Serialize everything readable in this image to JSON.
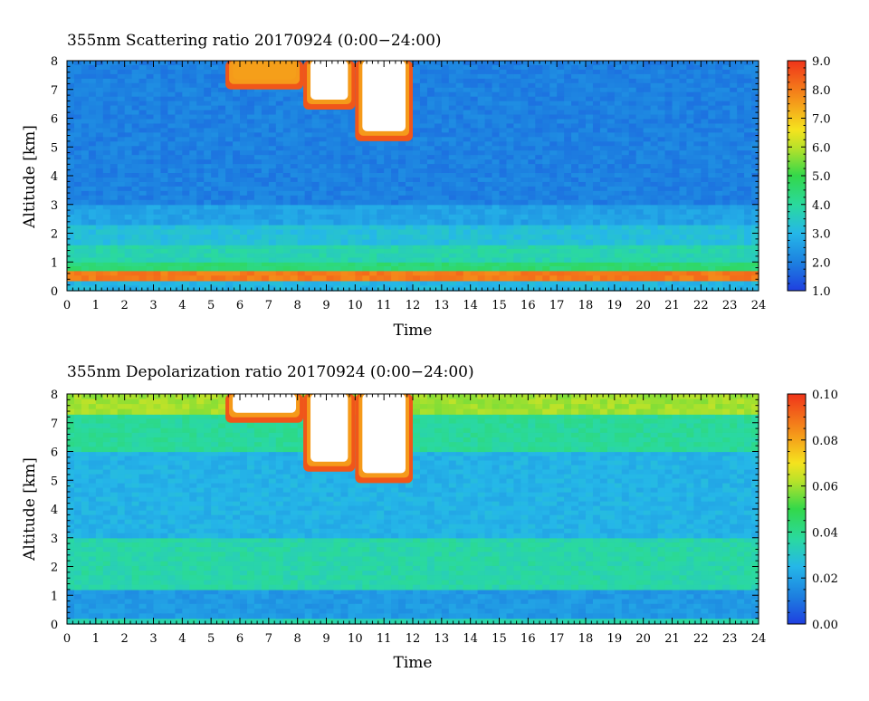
{
  "chart_data": [
    {
      "type": "heatmap",
      "title": "355nm Scattering ratio  20170924 (0:00−24:00)",
      "xlabel": "Time",
      "ylabel": "Altitude [km]",
      "xlim": [
        0,
        24
      ],
      "ylim": [
        0,
        8
      ],
      "x_ticks": [
        "0",
        "1",
        "2",
        "3",
        "4",
        "5",
        "6",
        "7",
        "8",
        "9",
        "10",
        "11",
        "12",
        "13",
        "14",
        "15",
        "16",
        "17",
        "18",
        "19",
        "20",
        "21",
        "22",
        "23",
        "24"
      ],
      "y_ticks": [
        "0",
        "1",
        "2",
        "3",
        "4",
        "5",
        "6",
        "7",
        "8"
      ],
      "colorbar": {
        "range": [
          1.0,
          9.0
        ],
        "ticks": [
          "1.0",
          "2.0",
          "3.0",
          "4.0",
          "5.0",
          "6.0",
          "7.0",
          "8.0",
          "9.0"
        ],
        "saturated_color": "#ffffff"
      },
      "layers": [
        {
          "from_km": 0.0,
          "to_km": 0.35,
          "value": 3.0
        },
        {
          "from_km": 0.35,
          "to_km": 0.7,
          "value": 8.0
        },
        {
          "from_km": 0.7,
          "to_km": 1.0,
          "value": 4.5
        },
        {
          "from_km": 1.0,
          "to_km": 1.6,
          "value": 3.8
        },
        {
          "from_km": 1.6,
          "to_km": 2.3,
          "value": 3.2
        },
        {
          "from_km": 2.3,
          "to_km": 3.0,
          "value": 2.6
        },
        {
          "from_km": 3.0,
          "to_km": 8.0,
          "value": 2.0
        }
      ],
      "clouds": [
        {
          "from_h": 5.5,
          "to_h": 8.2,
          "base_km": 7.0,
          "top_km": 8.0,
          "value": 7.5
        },
        {
          "from_h": 8.2,
          "to_h": 10.0,
          "base_km": 6.3,
          "top_km": 8.0,
          "value": 9.5
        },
        {
          "from_h": 10.0,
          "to_h": 12.0,
          "base_km": 5.2,
          "top_km": 8.0,
          "value": 9.5
        }
      ]
    },
    {
      "type": "heatmap",
      "title": "355nm Depolarization ratio  20170924 (0:00−24:00)",
      "xlabel": "Time",
      "ylabel": "Altitude [km]",
      "xlim": [
        0,
        24
      ],
      "ylim": [
        0,
        8
      ],
      "x_ticks": [
        "0",
        "1",
        "2",
        "3",
        "4",
        "5",
        "6",
        "7",
        "8",
        "9",
        "10",
        "11",
        "12",
        "13",
        "14",
        "15",
        "16",
        "17",
        "18",
        "19",
        "20",
        "21",
        "22",
        "23",
        "24"
      ],
      "y_ticks": [
        "0",
        "1",
        "2",
        "3",
        "4",
        "5",
        "6",
        "7",
        "8"
      ],
      "colorbar": {
        "range": [
          0.0,
          0.1
        ],
        "ticks": [
          "0.00",
          "0.02",
          "0.04",
          "0.06",
          "0.08",
          "0.10"
        ],
        "saturated_color": "#ffffff"
      },
      "layers": [
        {
          "from_km": 0.0,
          "to_km": 0.2,
          "value": 0.035
        },
        {
          "from_km": 0.2,
          "to_km": 1.2,
          "value": 0.018
        },
        {
          "from_km": 1.2,
          "to_km": 3.0,
          "value": 0.036
        },
        {
          "from_km": 3.0,
          "to_km": 6.0,
          "value": 0.024
        },
        {
          "from_km": 6.0,
          "to_km": 7.3,
          "value": 0.038
        },
        {
          "from_km": 7.3,
          "to_km": 8.0,
          "value": 0.06
        }
      ],
      "clouds": [
        {
          "from_h": 5.5,
          "to_h": 8.2,
          "base_km": 7.0,
          "top_km": 8.0,
          "value": 0.12
        },
        {
          "from_h": 8.2,
          "to_h": 10.0,
          "base_km": 5.3,
          "top_km": 8.0,
          "value": 0.12
        },
        {
          "from_h": 10.0,
          "to_h": 12.0,
          "base_km": 4.9,
          "top_km": 8.0,
          "value": 0.12
        }
      ]
    }
  ]
}
